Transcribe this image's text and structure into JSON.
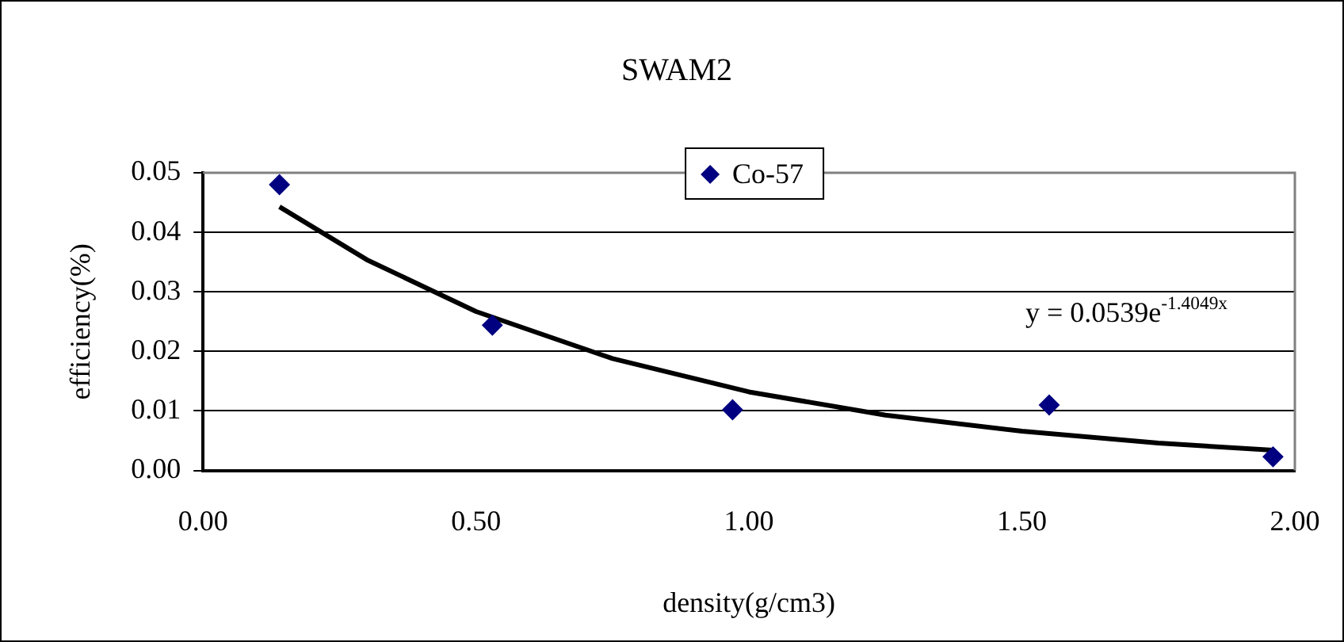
{
  "chart_data": {
    "type": "scatter",
    "title": "SWAM2",
    "xlabel": "density(g/cm3)",
    "ylabel": "efficiency(%)",
    "xlim": [
      0,
      2
    ],
    "xticks": [
      {
        "value": 0,
        "label": "0.00"
      },
      {
        "value": 0.5,
        "label": "0.50"
      },
      {
        "value": 1,
        "label": "1.00"
      },
      {
        "value": 1.5,
        "label": "1.50"
      },
      {
        "value": 2,
        "label": "2.00"
      }
    ],
    "ylim": [
      0,
      0.05
    ],
    "yticks": [
      {
        "value": 0,
        "label": "0.00"
      },
      {
        "value": 0.01,
        "label": "0.01"
      },
      {
        "value": 0.02,
        "label": "0.02"
      },
      {
        "value": 0.03,
        "label": "0.03"
      },
      {
        "value": 0.04,
        "label": "0.04"
      },
      {
        "value": 0.05,
        "label": "0.05"
      }
    ],
    "grid": "y",
    "legend": "top",
    "marker": "diamond",
    "series": [
      {
        "name": "Co-57",
        "color": "#000080",
        "x": [
          0.14,
          0.53,
          0.97,
          1.55,
          1.96
        ],
        "values": [
          0.048,
          0.0244,
          0.0102,
          0.011,
          0.0023
        ]
      },
      {
        "type": "line",
        "color": "#000000",
        "x": [
          0.14,
          0.3,
          0.5,
          0.75,
          1.0,
          1.25,
          1.5,
          1.75,
          1.96
        ],
        "values": [
          0.0443,
          0.0354,
          0.0267,
          0.0188,
          0.0132,
          0.0093,
          0.0066,
          0.0046,
          0.0034
        ],
        "marker": "none"
      }
    ],
    "annotations": [
      "y = 0.0539e$^{-1.4049x}$"
    ]
  }
}
